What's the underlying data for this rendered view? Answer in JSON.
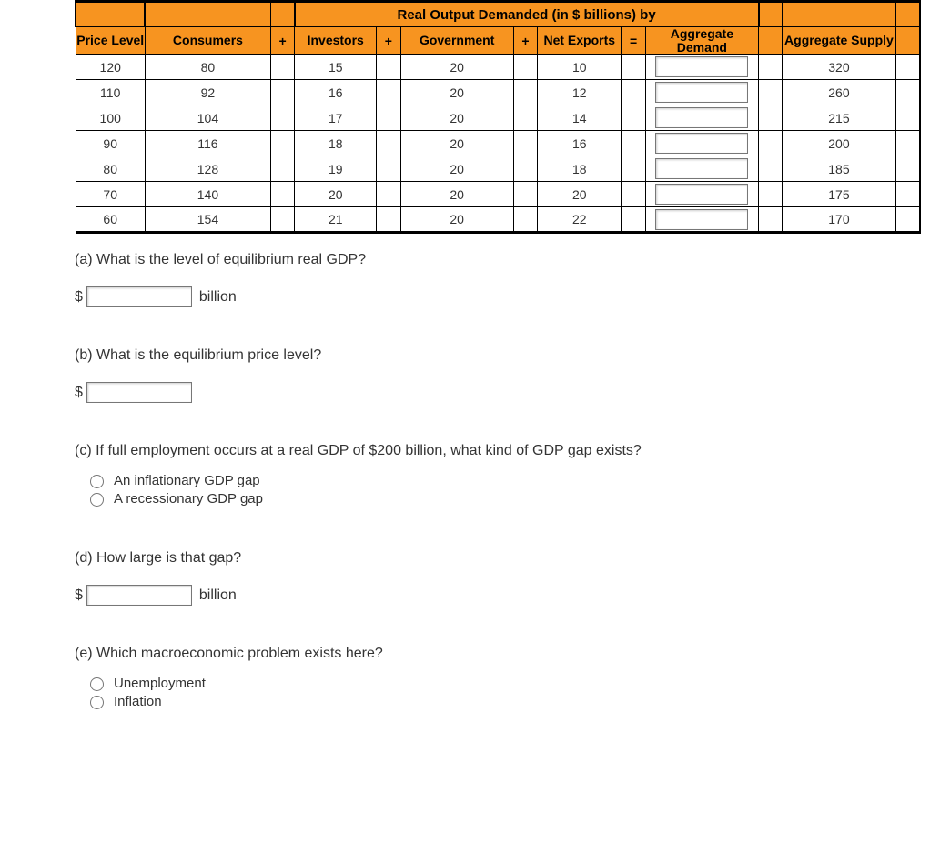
{
  "table": {
    "top_title": "Real Output Demanded (in $ billions) by",
    "headers": {
      "price": "Price Level",
      "consumers": "Consumers",
      "investors": "Investors",
      "government": "Government",
      "net_exports": "Net Exports",
      "agg_demand": "Aggregate Demand",
      "agg_supply": "Aggregate Supply"
    },
    "ops": {
      "plus": "+",
      "equals": "="
    },
    "rows": [
      {
        "price": "120",
        "cons": "80",
        "inv": "15",
        "gov": "20",
        "net": "10",
        "as": "320"
      },
      {
        "price": "110",
        "cons": "92",
        "inv": "16",
        "gov": "20",
        "net": "12",
        "as": "260"
      },
      {
        "price": "100",
        "cons": "104",
        "inv": "17",
        "gov": "20",
        "net": "14",
        "as": "215"
      },
      {
        "price": "90",
        "cons": "116",
        "inv": "18",
        "gov": "20",
        "net": "16",
        "as": "200"
      },
      {
        "price": "80",
        "cons": "128",
        "inv": "19",
        "gov": "20",
        "net": "18",
        "as": "185"
      },
      {
        "price": "70",
        "cons": "140",
        "inv": "20",
        "gov": "20",
        "net": "20",
        "as": "175"
      },
      {
        "price": "60",
        "cons": "154",
        "inv": "21",
        "gov": "20",
        "net": "22",
        "as": "170"
      }
    ],
    "colors": {
      "header_bg": "#f79420",
      "border": "#000000",
      "background": "#ffffff"
    },
    "fontsize": 14
  },
  "questions": {
    "a": {
      "text": "(a) What is the level of equilibrium real GDP?",
      "prefix": "$",
      "unit": "billion"
    },
    "b": {
      "text": "(b) What is the equilibrium price level?",
      "prefix": "$"
    },
    "c": {
      "text": "(c) If full employment occurs at a real GDP of $200 billion, what kind of GDP gap exists?",
      "options": [
        "An inflationary GDP gap",
        "A recessionary GDP gap"
      ]
    },
    "d": {
      "text": "(d) How large is that gap?",
      "prefix": "$",
      "unit": "billion"
    },
    "e": {
      "text": "(e) Which macroeconomic problem exists here?",
      "options": [
        "Unemployment",
        "Inflation"
      ]
    }
  }
}
